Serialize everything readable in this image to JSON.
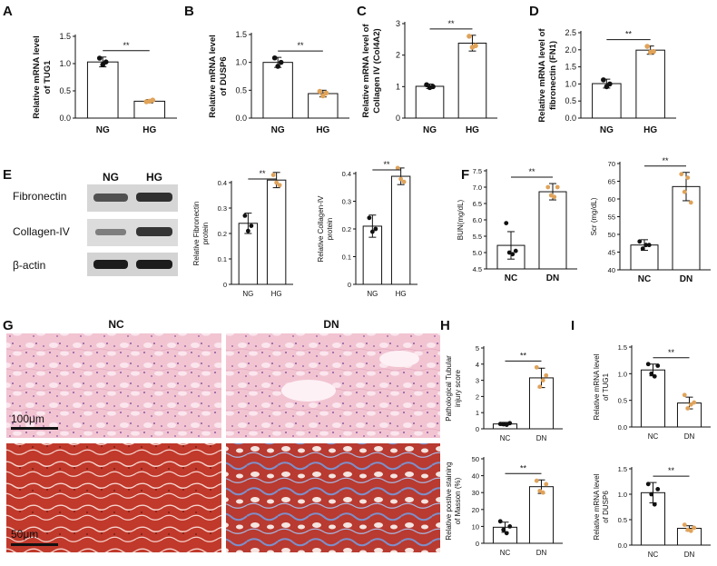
{
  "figure": {
    "panel_letters": [
      "A",
      "B",
      "C",
      "D",
      "E",
      "F",
      "G",
      "H",
      "I"
    ],
    "western_blot": {
      "col_labels": [
        "NG",
        "HG"
      ],
      "row_labels": [
        "Fibronectin",
        "Collagen-IV",
        "β-actin"
      ]
    },
    "histology": {
      "col_labels": [
        "NC",
        "DN"
      ],
      "scale_top": "100μm",
      "scale_bottom": "50μm"
    },
    "colors": {
      "bar_fill": "#ffffff",
      "bar_stroke": "#111111",
      "control_point": "#111111",
      "treatment_point": "#e0a35a"
    }
  },
  "chart_data": [
    {
      "id": "A",
      "type": "bar",
      "categories": [
        "NG",
        "HG"
      ],
      "values": [
        1.03,
        0.31
      ],
      "points": [
        [
          1.1,
          0.98,
          1.03
        ],
        [
          0.3,
          0.31,
          0.33
        ]
      ],
      "errors": [
        0.09,
        0.03
      ],
      "ylabel_lines": [
        "Relative mRNA level",
        "of TUG1"
      ],
      "ylim": [
        0.0,
        1.5
      ],
      "yticks": [
        0.0,
        0.5,
        1.0,
        1.5
      ],
      "yticklabels": [
        "0.0",
        "0.5",
        "1.0",
        "1.5"
      ],
      "significance": "**"
    },
    {
      "id": "B",
      "type": "bar",
      "categories": [
        "NG",
        "HG"
      ],
      "values": [
        1.0,
        0.44
      ],
      "points": [
        [
          1.08,
          0.93,
          1.0
        ],
        [
          0.48,
          0.4,
          0.45
        ]
      ],
      "errors": [
        0.09,
        0.06
      ],
      "ylabel_lines": [
        "Relative mRNA level",
        "of DUSP6"
      ],
      "ylim": [
        0.0,
        1.5
      ],
      "yticks": [
        0.0,
        0.5,
        1.0,
        1.5
      ],
      "yticklabels": [
        "0.0",
        "0.5",
        "1.0",
        "1.5"
      ],
      "significance": "**"
    },
    {
      "id": "C",
      "type": "bar",
      "categories": [
        "NG",
        "HG"
      ],
      "values": [
        1.01,
        2.38
      ],
      "points": [
        [
          1.06,
          0.97,
          1.0
        ],
        [
          2.6,
          2.25,
          2.3
        ]
      ],
      "errors": [
        0.07,
        0.25
      ],
      "ylabel_lines": [
        "Relative mRNA level of",
        "Collagen IV (Col4A2)"
      ],
      "ylim": [
        0,
        3
      ],
      "yticks": [
        0,
        1,
        2,
        3
      ],
      "yticklabels": [
        "0",
        "1",
        "2",
        "3"
      ],
      "significance": "**"
    },
    {
      "id": "D",
      "type": "bar",
      "categories": [
        "NG",
        "HG"
      ],
      "values": [
        1.01,
        1.99
      ],
      "points": [
        [
          1.12,
          0.92,
          1.0
        ],
        [
          2.1,
          1.93,
          1.95
        ]
      ],
      "errors": [
        0.13,
        0.12
      ],
      "ylabel_lines": [
        "Relative mRNA level of",
        "fibronectin (FN1)"
      ],
      "ylim": [
        0.0,
        2.5
      ],
      "yticks": [
        0.0,
        0.5,
        1.0,
        1.5,
        2.0,
        2.5
      ],
      "yticklabels": [
        "0.0",
        "0.5",
        "1.0",
        "1.5",
        "2.0",
        "2.5"
      ],
      "significance": "**"
    },
    {
      "id": "E1",
      "type": "bar",
      "categories": [
        "NG",
        "HG"
      ],
      "values": [
        0.24,
        0.41
      ],
      "points": [
        [
          0.27,
          0.21,
          0.23
        ],
        [
          0.43,
          0.4,
          0.39
        ]
      ],
      "errors": [
        0.04,
        0.03
      ],
      "ylabel_lines": [
        "Relative Fibronectin",
        "protein"
      ],
      "ylim": [
        0,
        0.4
      ],
      "yticks": [
        0,
        0.1,
        0.2,
        0.3,
        0.4
      ],
      "yticklabels": [
        "0",
        "0.1",
        "0.2",
        "0.3",
        "0.4"
      ],
      "significance": "**"
    },
    {
      "id": "E2",
      "type": "bar",
      "categories": [
        "NG",
        "HG"
      ],
      "values": [
        0.21,
        0.39
      ],
      "points": [
        [
          0.24,
          0.19,
          0.2
        ],
        [
          0.42,
          0.38,
          0.37
        ]
      ],
      "errors": [
        0.04,
        0.03
      ],
      "ylabel_lines": [
        "Relative Collagen-IV",
        "protein"
      ],
      "ylim": [
        0,
        0.4
      ],
      "yticks": [
        0,
        0.1,
        0.2,
        0.3,
        0.4
      ],
      "yticklabels": [
        "0",
        "0.1",
        "0.2",
        "0.3",
        "0.4"
      ],
      "significance": "**"
    },
    {
      "id": "F1",
      "type": "bar",
      "categories": [
        "NC",
        "DN"
      ],
      "values": [
        5.22,
        6.86
      ],
      "points": [
        [
          5.9,
          5.0,
          4.95,
          5.05
        ],
        [
          7.0,
          6.75,
          6.7,
          7.0
        ]
      ],
      "errors": [
        0.42,
        0.25
      ],
      "ylabel_lines": [
        "BUN(mg/dL)"
      ],
      "ylim": [
        4.5,
        7.5
      ],
      "yticks": [
        4.5,
        5.0,
        5.5,
        6.0,
        6.5,
        7.0,
        7.5
      ],
      "yticklabels": [
        "4.5",
        "5.0",
        "5.5",
        "6.0",
        "6.5",
        "7.0",
        "7.5"
      ],
      "significance": "**"
    },
    {
      "id": "F2",
      "type": "bar",
      "categories": [
        "NC",
        "DN"
      ],
      "values": [
        47.0,
        63.5
      ],
      "points": [
        [
          48.0,
          46.0,
          47.0,
          47.0
        ],
        [
          67.0,
          62.0,
          66.0,
          59.0
        ]
      ],
      "errors": [
        1.5,
        4.0
      ],
      "ylabel_lines": [
        "Scr (mg/dL)"
      ],
      "ylim": [
        40,
        70
      ],
      "yticks": [
        40,
        45,
        50,
        55,
        60,
        65,
        70
      ],
      "yticklabels": [
        "40",
        "45",
        "50",
        "55",
        "60",
        "65",
        "70"
      ],
      "significance": "**"
    },
    {
      "id": "H1",
      "type": "bar",
      "categories": [
        "NC",
        "DN"
      ],
      "values": [
        0.3,
        3.15
      ],
      "points": [
        [
          0.3,
          0.28,
          0.25,
          0.35
        ],
        [
          3.8,
          2.6,
          3.0,
          3.3
        ]
      ],
      "errors": [
        0.1,
        0.6
      ],
      "ylabel_lines": [
        "Pathological Tubular",
        "injury score"
      ],
      "ylim": [
        0,
        5
      ],
      "yticks": [
        0,
        1,
        2,
        3,
        4,
        5
      ],
      "yticklabels": [
        "0",
        "1",
        "2",
        "3",
        "4",
        "5"
      ],
      "significance": "**"
    },
    {
      "id": "H2",
      "type": "bar",
      "categories": [
        "NC",
        "DN"
      ],
      "values": [
        9.5,
        33.5
      ],
      "points": [
        [
          13,
          8,
          6,
          10
        ],
        [
          37,
          31,
          30,
          35
        ]
      ],
      "errors": [
        3,
        4
      ],
      "ylabel_lines": [
        "Relative postive staining",
        "of Masson (%)"
      ],
      "ylim": [
        0,
        50
      ],
      "yticks": [
        0,
        10,
        20,
        30,
        40,
        50
      ],
      "yticklabels": [
        "0",
        "10",
        "20",
        "30",
        "40",
        "50"
      ],
      "significance": "**"
    },
    {
      "id": "I1",
      "type": "bar",
      "categories": [
        "NC",
        "DN"
      ],
      "values": [
        1.07,
        0.45
      ],
      "points": [
        [
          1.18,
          1.0,
          0.95,
          1.15
        ],
        [
          0.6,
          0.35,
          0.42,
          0.46
        ]
      ],
      "errors": [
        0.11,
        0.11
      ],
      "ylabel_lines": [
        "Relative mRNA level",
        "of TUG1"
      ],
      "ylim": [
        0.0,
        1.5
      ],
      "yticks": [
        0.0,
        0.5,
        1.0,
        1.5
      ],
      "yticklabels": [
        "0.0",
        "0.5",
        "1.0",
        "1.5"
      ],
      "significance": "**"
    },
    {
      "id": "I2",
      "type": "bar",
      "categories": [
        "NC",
        "DN"
      ],
      "values": [
        1.03,
        0.33
      ],
      "points": [
        [
          1.2,
          1.0,
          0.8,
          1.1
        ],
        [
          0.4,
          0.3,
          0.28,
          0.34
        ]
      ],
      "errors": [
        0.2,
        0.05
      ],
      "ylabel_lines": [
        "Relative mRNA level",
        "of DUSP6"
      ],
      "ylim": [
        0.0,
        1.5
      ],
      "yticks": [
        0.0,
        0.5,
        1.0,
        1.5
      ],
      "yticklabels": [
        "0.0",
        "0.5",
        "1.0",
        "1.5"
      ],
      "significance": "**"
    }
  ]
}
